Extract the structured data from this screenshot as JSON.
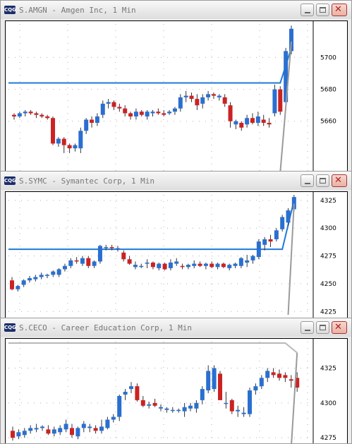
{
  "windows": [
    {
      "title": "S.AMGN - Amgen Inc, 1 Min",
      "app_icon": "CQG",
      "chart_data": {
        "type": "candlestick",
        "symbol": "S.AMGN",
        "interval": "1 Min",
        "y_ticks": [
          5660,
          5680,
          5700
        ],
        "ylim": [
          5628,
          5721
        ],
        "grid": true,
        "candles": [
          [
            5664,
            5665,
            5661,
            5663
          ],
          [
            5663,
            5666,
            5662,
            5665
          ],
          [
            5665,
            5667,
            5663,
            5666
          ],
          [
            5666,
            5667,
            5664,
            5665
          ],
          [
            5665,
            5666,
            5662,
            5664
          ],
          [
            5664,
            5665,
            5662,
            5663
          ],
          [
            5663,
            5664,
            5661,
            5662
          ],
          [
            5662,
            5663,
            5645,
            5646
          ],
          [
            5646,
            5650,
            5644,
            5649
          ],
          [
            5649,
            5650,
            5640,
            5645
          ],
          [
            5645,
            5646,
            5640,
            5643
          ],
          [
            5643,
            5646,
            5641,
            5645
          ],
          [
            5643,
            5656,
            5640,
            5654
          ],
          [
            5654,
            5662,
            5652,
            5661
          ],
          [
            5661,
            5663,
            5656,
            5659
          ],
          [
            5659,
            5665,
            5657,
            5663
          ],
          [
            5664,
            5673,
            5662,
            5671
          ],
          [
            5671,
            5674,
            5668,
            5672
          ],
          [
            5672,
            5673,
            5667,
            5669
          ],
          [
            5669,
            5671,
            5666,
            5668
          ],
          [
            5668,
            5670,
            5663,
            5665
          ],
          [
            5665,
            5666,
            5661,
            5663
          ],
          [
            5663,
            5668,
            5661,
            5666
          ],
          [
            5666,
            5667,
            5663,
            5664
          ],
          [
            5663,
            5667,
            5661,
            5666
          ],
          [
            5665,
            5667,
            5663,
            5666
          ],
          [
            5666,
            5668,
            5664,
            5665
          ],
          [
            5665,
            5667,
            5663,
            5664
          ],
          [
            5665,
            5667,
            5664,
            5666
          ],
          [
            5666,
            5669,
            5664,
            5668
          ],
          [
            5668,
            5677,
            5666,
            5675
          ],
          [
            5675,
            5679,
            5672,
            5676
          ],
          [
            5676,
            5678,
            5672,
            5674
          ],
          [
            5674,
            5677,
            5667,
            5670
          ],
          [
            5671,
            5677,
            5668,
            5675
          ],
          [
            5675,
            5679,
            5673,
            5677
          ],
          [
            5677,
            5678,
            5674,
            5676
          ],
          [
            5675,
            5677,
            5673,
            5676
          ],
          [
            5675,
            5677,
            5669,
            5671
          ],
          [
            5670,
            5672,
            5656,
            5660
          ],
          [
            5658,
            5661,
            5655,
            5660
          ],
          [
            5659,
            5660,
            5654,
            5656
          ],
          [
            5658,
            5664,
            5656,
            5662
          ],
          [
            5662,
            5665,
            5658,
            5659
          ],
          [
            5659,
            5666,
            5657,
            5663
          ],
          [
            5661,
            5664,
            5657,
            5659
          ],
          [
            5659,
            5662,
            5656,
            5658
          ],
          [
            5665,
            5683,
            5663,
            5680
          ],
          [
            5680,
            5682,
            5664,
            5666
          ],
          [
            5672,
            5706,
            5670,
            5704
          ],
          [
            5704,
            5720,
            5702,
            5718
          ]
        ],
        "level_line": 5684,
        "level_line_end_value": 5706,
        "price_line_start": 5710,
        "price_line_end": 5628,
        "price_line_start_index": 50,
        "price_line_end_index": 48,
        "colors": {
          "up": "#2a6fd0",
          "down": "#cc2222",
          "line": "#1f7ad6",
          "price": "#9a9a9a",
          "grid": "#b0b0b0"
        }
      }
    },
    {
      "title": "S.SYMC - Symantec Corp, 1 Min",
      "app_icon": "CQG",
      "chart_data": {
        "type": "candlestick",
        "symbol": "S.SYMC",
        "interval": "1 Min",
        "y_ticks": [
          4225,
          4250,
          4275,
          4300,
          4325
        ],
        "ylim": [
          4222,
          4330
        ],
        "grid": true,
        "candles": [
          [
            4253,
            4256,
            4244,
            4245
          ],
          [
            4245,
            4249,
            4243,
            4248
          ],
          [
            4249,
            4254,
            4247,
            4253
          ],
          [
            4253,
            4257,
            4251,
            4255
          ],
          [
            4254,
            4258,
            4252,
            4256
          ],
          [
            4256,
            4260,
            4254,
            4258
          ],
          [
            4257,
            4259,
            4255,
            4258
          ],
          [
            4258,
            4262,
            4256,
            4261
          ],
          [
            4258,
            4264,
            4256,
            4263
          ],
          [
            4263,
            4268,
            4261,
            4266
          ],
          [
            4266,
            4273,
            4264,
            4271
          ],
          [
            4271,
            4274,
            4268,
            4270
          ],
          [
            4268,
            4275,
            4266,
            4273
          ],
          [
            4273,
            4275,
            4264,
            4266
          ],
          [
            4266,
            4271,
            4264,
            4270
          ],
          [
            4270,
            4285,
            4268,
            4284
          ],
          [
            4283,
            4285,
            4280,
            4283
          ],
          [
            4283,
            4285,
            4280,
            4282
          ],
          [
            4282,
            4284,
            4279,
            4282
          ],
          [
            4278,
            4280,
            4270,
            4272
          ],
          [
            4272,
            4275,
            4267,
            4268
          ],
          [
            4265,
            4270,
            4263,
            4267
          ],
          [
            4266,
            4268,
            4264,
            4266
          ],
          [
            4268,
            4272,
            4264,
            4269
          ],
          [
            4269,
            4270,
            4263,
            4265
          ],
          [
            4264,
            4269,
            4262,
            4268
          ],
          [
            4268,
            4269,
            4262,
            4263
          ],
          [
            4264,
            4272,
            4262,
            4269
          ],
          [
            4268,
            4273,
            4266,
            4270
          ],
          [
            4266,
            4268,
            4263,
            4265
          ],
          [
            4265,
            4268,
            4263,
            4267
          ],
          [
            4266,
            4271,
            4264,
            4268
          ],
          [
            4268,
            4270,
            4265,
            4266
          ],
          [
            4266,
            4269,
            4263,
            4268
          ],
          [
            4268,
            4270,
            4264,
            4265
          ],
          [
            4265,
            4269,
            4263,
            4268
          ],
          [
            4268,
            4269,
            4264,
            4265
          ],
          [
            4264,
            4268,
            4262,
            4267
          ],
          [
            4266,
            4269,
            4264,
            4268
          ],
          [
            4266,
            4274,
            4264,
            4273
          ],
          [
            4269,
            4276,
            4265,
            4271
          ],
          [
            4271,
            4276,
            4268,
            4275
          ],
          [
            4274,
            4290,
            4272,
            4288
          ],
          [
            4285,
            4292,
            4280,
            4290
          ],
          [
            4290,
            4294,
            4283,
            4288
          ],
          [
            4290,
            4300,
            4288,
            4298
          ],
          [
            4299,
            4312,
            4297,
            4310
          ],
          [
            4305,
            4318,
            4302,
            4316
          ],
          [
            4317,
            4330,
            4315,
            4328
          ]
        ],
        "level_line": 4281,
        "level_line_end_value": 4325,
        "price_line_start": 4322,
        "price_line_end": 4222,
        "price_line_start_index": 48,
        "price_line_end_index": 47,
        "colors": {
          "up": "#2a6fd0",
          "down": "#cc2222",
          "line": "#1f7ad6",
          "price": "#9a9a9a",
          "grid": "#b0b0b0"
        }
      }
    },
    {
      "title": "S.CECO - Career Education Corp, 1 Min",
      "app_icon": "CQG",
      "chart_data": {
        "type": "candlestick",
        "symbol": "S.CECO",
        "interval": "1 Min",
        "y_ticks": [
          4275,
          4300,
          4325
        ],
        "ylim": [
          4268,
          4344
        ],
        "grid": true,
        "candles": [
          [
            4280,
            4283,
            4273,
            4275
          ],
          [
            4276,
            4281,
            4274,
            4279
          ],
          [
            4277,
            4282,
            4275,
            4280
          ],
          [
            4280,
            4284,
            4278,
            4282
          ],
          [
            4281,
            4285,
            4279,
            4282
          ],
          [
            4282,
            4284,
            4280,
            4283
          ],
          [
            4281,
            4284,
            4277,
            4278
          ],
          [
            4278,
            4283,
            4276,
            4281
          ],
          [
            4279,
            4284,
            4277,
            4282
          ],
          [
            4281,
            4288,
            4279,
            4285
          ],
          [
            4282,
            4285,
            4275,
            4277
          ],
          [
            4276,
            4283,
            4274,
            4282
          ],
          [
            4282,
            4287,
            4279,
            4285
          ],
          [
            4282,
            4285,
            4279,
            4283
          ],
          [
            4282,
            4284,
            4278,
            4280
          ],
          [
            4280,
            4288,
            4278,
            4283
          ],
          [
            4282,
            4290,
            4281,
            4288
          ],
          [
            4288,
            4292,
            4286,
            4290
          ],
          [
            4290,
            4306,
            4287,
            4305
          ],
          [
            4306,
            4310,
            4302,
            4308
          ],
          [
            4310,
            4315,
            4307,
            4312
          ],
          [
            4312,
            4314,
            4301,
            4302
          ],
          [
            4302,
            4305,
            4297,
            4298
          ],
          [
            4298,
            4301,
            4296,
            4299
          ],
          [
            4300,
            4303,
            4297,
            4298
          ],
          [
            4296,
            4299,
            4294,
            4297
          ],
          [
            4295,
            4297,
            4293,
            4296
          ],
          [
            4295,
            4297,
            4293,
            4295
          ],
          [
            4295,
            4296,
            4293,
            4295
          ],
          [
            4294,
            4300,
            4290,
            4297
          ],
          [
            4296,
            4300,
            4294,
            4298
          ],
          [
            4296,
            4302,
            4293,
            4300
          ],
          [
            4302,
            4312,
            4299,
            4310
          ],
          [
            4309,
            4327,
            4307,
            4323
          ],
          [
            4310,
            4327,
            4308,
            4325
          ],
          [
            4321,
            4323,
            4302,
            4302
          ],
          [
            4300,
            4308,
            4296,
            4300
          ],
          [
            4302,
            4303,
            4292,
            4294
          ],
          [
            4294,
            4298,
            4290,
            4295
          ],
          [
            4292,
            4297,
            4290,
            4293
          ],
          [
            4292,
            4311,
            4290,
            4309
          ],
          [
            4309,
            4314,
            4306,
            4312
          ],
          [
            4312,
            4320,
            4310,
            4318
          ],
          [
            4318,
            4325,
            4315,
            4323
          ],
          [
            4322,
            4325,
            4318,
            4320
          ],
          [
            4321,
            4324,
            4316,
            4318
          ],
          [
            4320,
            4322,
            4315,
            4318
          ],
          [
            4317,
            4320,
            4311,
            4316
          ],
          [
            4318,
            4322,
            4308,
            4311
          ]
        ],
        "level_line": 4343,
        "level_line_end_value": 4336,
        "price_line_start": 4336,
        "price_line_end": 4268,
        "price_line_start_index": 48,
        "price_line_end_index": 47,
        "colors": {
          "up": "#2a6fd0",
          "down": "#cc2222",
          "line": "#b8b8b8",
          "price": "#9a9a9a",
          "grid": "#b0b0b0"
        }
      }
    }
  ]
}
